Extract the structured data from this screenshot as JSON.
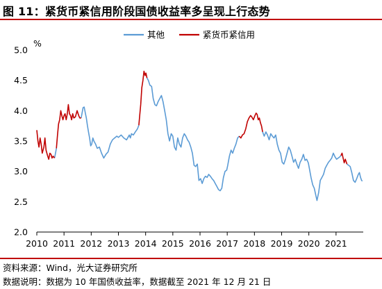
{
  "header": {
    "title": "图 11：紧货币紧信用阶段国债收益率多呈现上行态势"
  },
  "footer": {
    "source": "资料来源：Wind，光大证券研究所",
    "note": "数据说明：数据为 10 年国债收益率，数据截至 2021 年 12 月 21 日"
  },
  "colors": {
    "other": "#5b9bd5",
    "tight": "#c00000",
    "rule": "#c00000"
  },
  "chart_data": {
    "type": "line",
    "title": "",
    "xlabel": "",
    "ylabel": "",
    "y_unit": "%",
    "ylim": [
      2.0,
      5.0
    ],
    "y_ticks": [
      "2.0",
      "2.5",
      "3.0",
      "3.5",
      "4.0",
      "4.5",
      "5.0"
    ],
    "xlim": [
      2010,
      2022
    ],
    "x_ticks": [
      "2010",
      "2011",
      "2012",
      "2013",
      "2014",
      "2015",
      "2016",
      "2017",
      "2018",
      "2019",
      "2020",
      "2021"
    ],
    "grid": false,
    "legend_position": "top-center",
    "series": [
      {
        "name": "其他",
        "color_key": "other",
        "points": [
          [
            2010.65,
            3.22
          ],
          [
            2010.68,
            3.28
          ],
          [
            2010.72,
            3.38
          ],
          [
            2011.63,
            3.88
          ],
          [
            2011.66,
            3.95
          ],
          [
            2011.7,
            4.05
          ],
          [
            2011.74,
            4.06
          ],
          [
            2011.78,
            3.97
          ],
          [
            2011.82,
            3.88
          ],
          [
            2011.86,
            3.76
          ],
          [
            2011.9,
            3.65
          ],
          [
            2011.94,
            3.55
          ],
          [
            2011.98,
            3.42
          ],
          [
            2012.02,
            3.45
          ],
          [
            2012.06,
            3.55
          ],
          [
            2012.1,
            3.5
          ],
          [
            2012.16,
            3.45
          ],
          [
            2012.22,
            3.38
          ],
          [
            2012.3,
            3.4
          ],
          [
            2012.38,
            3.3
          ],
          [
            2012.46,
            3.22
          ],
          [
            2012.54,
            3.28
          ],
          [
            2012.62,
            3.32
          ],
          [
            2012.7,
            3.45
          ],
          [
            2012.78,
            3.52
          ],
          [
            2012.86,
            3.55
          ],
          [
            2012.94,
            3.58
          ],
          [
            2013.0,
            3.56
          ],
          [
            2013.1,
            3.6
          ],
          [
            2013.2,
            3.55
          ],
          [
            2013.3,
            3.52
          ],
          [
            2013.4,
            3.6
          ],
          [
            2013.44,
            3.55
          ],
          [
            2013.48,
            3.62
          ],
          [
            2013.55,
            3.6
          ],
          [
            2013.62,
            3.65
          ],
          [
            2013.7,
            3.7
          ],
          [
            2013.75,
            3.76
          ],
          [
            2014.05,
            4.54
          ],
          [
            2014.1,
            4.5
          ],
          [
            2014.16,
            4.42
          ],
          [
            2014.22,
            4.4
          ],
          [
            2014.28,
            4.2
          ],
          [
            2014.34,
            4.1
          ],
          [
            2014.4,
            4.08
          ],
          [
            2014.46,
            4.15
          ],
          [
            2014.52,
            4.2
          ],
          [
            2014.58,
            4.25
          ],
          [
            2014.64,
            4.15
          ],
          [
            2014.7,
            4.0
          ],
          [
            2014.76,
            3.85
          ],
          [
            2014.82,
            3.62
          ],
          [
            2014.88,
            3.5
          ],
          [
            2014.94,
            3.62
          ],
          [
            2015.0,
            3.58
          ],
          [
            2015.06,
            3.4
          ],
          [
            2015.12,
            3.35
          ],
          [
            2015.18,
            3.55
          ],
          [
            2015.24,
            3.45
          ],
          [
            2015.3,
            3.4
          ],
          [
            2015.36,
            3.55
          ],
          [
            2015.42,
            3.62
          ],
          [
            2015.48,
            3.58
          ],
          [
            2015.54,
            3.52
          ],
          [
            2015.6,
            3.48
          ],
          [
            2015.66,
            3.4
          ],
          [
            2015.72,
            3.3
          ],
          [
            2015.78,
            3.1
          ],
          [
            2015.84,
            3.08
          ],
          [
            2015.9,
            3.12
          ],
          [
            2015.96,
            2.85
          ],
          [
            2016.02,
            2.88
          ],
          [
            2016.08,
            2.8
          ],
          [
            2016.14,
            2.88
          ],
          [
            2016.2,
            2.92
          ],
          [
            2016.26,
            2.9
          ],
          [
            2016.32,
            2.95
          ],
          [
            2016.38,
            2.92
          ],
          [
            2016.44,
            2.88
          ],
          [
            2016.5,
            2.85
          ],
          [
            2016.56,
            2.8
          ],
          [
            2016.62,
            2.75
          ],
          [
            2016.68,
            2.7
          ],
          [
            2016.74,
            2.68
          ],
          [
            2016.8,
            2.72
          ],
          [
            2016.86,
            2.9
          ],
          [
            2016.92,
            3.0
          ],
          [
            2016.98,
            3.02
          ],
          [
            2017.02,
            3.1
          ],
          [
            2017.08,
            3.25
          ],
          [
            2017.14,
            3.35
          ],
          [
            2017.2,
            3.3
          ],
          [
            2017.26,
            3.38
          ],
          [
            2017.32,
            3.45
          ],
          [
            2017.38,
            3.55
          ],
          [
            2017.44,
            3.58
          ],
          [
            2018.3,
            3.65
          ],
          [
            2018.36,
            3.58
          ],
          [
            2018.42,
            3.65
          ],
          [
            2018.48,
            3.6
          ],
          [
            2018.54,
            3.52
          ],
          [
            2018.6,
            3.62
          ],
          [
            2018.66,
            3.58
          ],
          [
            2018.72,
            3.55
          ],
          [
            2018.78,
            3.6
          ],
          [
            2018.84,
            3.45
          ],
          [
            2018.9,
            3.35
          ],
          [
            2018.96,
            3.3
          ],
          [
            2019.02,
            3.15
          ],
          [
            2019.08,
            3.12
          ],
          [
            2019.14,
            3.2
          ],
          [
            2019.2,
            3.3
          ],
          [
            2019.26,
            3.4
          ],
          [
            2019.32,
            3.35
          ],
          [
            2019.38,
            3.25
          ],
          [
            2019.44,
            3.15
          ],
          [
            2019.5,
            3.2
          ],
          [
            2019.56,
            3.12
          ],
          [
            2019.62,
            3.05
          ],
          [
            2019.68,
            3.15
          ],
          [
            2019.74,
            3.2
          ],
          [
            2019.8,
            3.28
          ],
          [
            2019.86,
            3.18
          ],
          [
            2019.92,
            3.2
          ],
          [
            2019.98,
            3.14
          ],
          [
            2020.02,
            3.05
          ],
          [
            2020.08,
            2.9
          ],
          [
            2020.14,
            2.78
          ],
          [
            2020.2,
            2.72
          ],
          [
            2020.26,
            2.6
          ],
          [
            2020.3,
            2.52
          ],
          [
            2020.36,
            2.65
          ],
          [
            2020.42,
            2.85
          ],
          [
            2020.48,
            2.9
          ],
          [
            2020.54,
            2.95
          ],
          [
            2020.6,
            3.05
          ],
          [
            2020.66,
            3.1
          ],
          [
            2020.72,
            3.15
          ],
          [
            2020.78,
            3.18
          ],
          [
            2020.84,
            3.22
          ],
          [
            2020.9,
            3.3
          ],
          [
            2020.96,
            3.24
          ],
          [
            2021.02,
            3.2
          ],
          [
            2021.08,
            3.22
          ],
          [
            2021.14,
            3.24
          ],
          [
            2021.18,
            3.26
          ],
          [
            2021.4,
            3.12
          ],
          [
            2021.46,
            3.1
          ],
          [
            2021.52,
            3.08
          ],
          [
            2021.58,
            2.98
          ],
          [
            2021.64,
            2.85
          ],
          [
            2021.7,
            2.82
          ],
          [
            2021.76,
            2.88
          ],
          [
            2021.82,
            2.95
          ],
          [
            2021.86,
            2.98
          ],
          [
            2021.9,
            2.9
          ],
          [
            2021.94,
            2.85
          ],
          [
            2021.97,
            2.84
          ]
        ]
      },
      {
        "name": "紧货币紧信用",
        "color_key": "tight",
        "segments": [
          [
            [
              2010.0,
              3.68
            ],
            [
              2010.04,
              3.5
            ],
            [
              2010.08,
              3.4
            ],
            [
              2010.12,
              3.55
            ],
            [
              2010.16,
              3.45
            ],
            [
              2010.2,
              3.3
            ],
            [
              2010.26,
              3.4
            ],
            [
              2010.3,
              3.55
            ],
            [
              2010.34,
              3.35
            ],
            [
              2010.4,
              3.25
            ],
            [
              2010.44,
              3.2
            ],
            [
              2010.48,
              3.3
            ],
            [
              2010.52,
              3.28
            ],
            [
              2010.56,
              3.22
            ],
            [
              2010.6,
              3.25
            ],
            [
              2010.65,
              3.22
            ]
          ],
          [
            [
              2010.72,
              3.38
            ],
            [
              2010.76,
              3.6
            ],
            [
              2010.8,
              3.78
            ],
            [
              2010.84,
              3.85
            ],
            [
              2010.88,
              4.0
            ],
            [
              2010.92,
              3.92
            ],
            [
              2010.96,
              3.85
            ],
            [
              2011.0,
              3.92
            ],
            [
              2011.04,
              3.95
            ],
            [
              2011.08,
              3.85
            ],
            [
              2011.12,
              3.95
            ],
            [
              2011.16,
              4.1
            ],
            [
              2011.2,
              3.95
            ],
            [
              2011.24,
              3.92
            ],
            [
              2011.28,
              3.85
            ],
            [
              2011.32,
              3.95
            ],
            [
              2011.36,
              3.88
            ],
            [
              2011.42,
              3.9
            ],
            [
              2011.48,
              4.0
            ],
            [
              2011.54,
              3.92
            ],
            [
              2011.58,
              3.88
            ],
            [
              2011.63,
              3.88
            ]
          ],
          [
            [
              2013.75,
              3.76
            ],
            [
              2013.78,
              3.9
            ],
            [
              2013.82,
              4.1
            ],
            [
              2013.86,
              4.38
            ],
            [
              2013.9,
              4.5
            ],
            [
              2013.94,
              4.65
            ],
            [
              2013.98,
              4.58
            ],
            [
              2014.01,
              4.62
            ],
            [
              2014.05,
              4.54
            ]
          ],
          [
            [
              2017.44,
              3.58
            ],
            [
              2017.5,
              3.55
            ],
            [
              2017.56,
              3.6
            ],
            [
              2017.62,
              3.62
            ],
            [
              2017.68,
              3.7
            ],
            [
              2017.74,
              3.82
            ],
            [
              2017.8,
              3.88
            ],
            [
              2017.86,
              3.92
            ],
            [
              2017.9,
              3.9
            ],
            [
              2017.96,
              3.85
            ],
            [
              2018.02,
              3.92
            ],
            [
              2018.06,
              3.96
            ],
            [
              2018.1,
              3.94
            ],
            [
              2018.14,
              3.85
            ],
            [
              2018.18,
              3.88
            ],
            [
              2018.22,
              3.8
            ],
            [
              2018.26,
              3.75
            ],
            [
              2018.3,
              3.65
            ]
          ],
          [
            [
              2021.18,
              3.26
            ],
            [
              2021.22,
              3.3
            ],
            [
              2021.26,
              3.22
            ],
            [
              2021.3,
              3.14
            ],
            [
              2021.34,
              3.2
            ],
            [
              2021.38,
              3.15
            ],
            [
              2021.4,
              3.12
            ]
          ]
        ]
      }
    ]
  }
}
